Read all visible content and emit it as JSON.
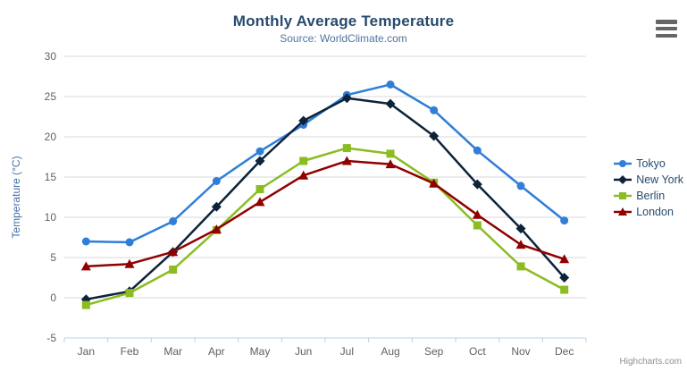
{
  "header": {
    "title": "Monthly Average Temperature",
    "subtitle": "Source: WorldClimate.com"
  },
  "credits": "Highcharts.com",
  "colors": {
    "grid": "#d8d8d8",
    "axis_line": "#c0d0e0",
    "tick_label": "#606060",
    "title": "#274b6d",
    "subtitle": "#4d759e",
    "axis_title": "#4572a7",
    "legend_text": "#274b6d",
    "credits": "#909090",
    "burger_icon": "#666666"
  },
  "icons": {
    "context_menu": "hamburger-icon"
  },
  "chart_data": {
    "type": "line",
    "title": "Monthly Average Temperature",
    "subtitle": "Source: WorldClimate.com",
    "categories": [
      "Jan",
      "Feb",
      "Mar",
      "Apr",
      "May",
      "Jun",
      "Jul",
      "Aug",
      "Sep",
      "Oct",
      "Nov",
      "Dec"
    ],
    "series": [
      {
        "name": "Tokyo",
        "color": "#2f7ed8",
        "marker": "circle",
        "values": [
          7.0,
          6.9,
          9.5,
          14.5,
          18.2,
          21.5,
          25.2,
          26.5,
          23.3,
          18.3,
          13.9,
          9.6
        ]
      },
      {
        "name": "New York",
        "color": "#0d233a",
        "marker": "diamond",
        "values": [
          -0.2,
          0.8,
          5.7,
          11.3,
          17.0,
          22.0,
          24.8,
          24.1,
          20.1,
          14.1,
          8.6,
          2.5
        ]
      },
      {
        "name": "Berlin",
        "color": "#8bbc21",
        "marker": "square",
        "values": [
          -0.9,
          0.6,
          3.5,
          8.4,
          13.5,
          17.0,
          18.6,
          17.9,
          14.3,
          9.0,
          3.9,
          1.0
        ]
      },
      {
        "name": "London",
        "color": "#910000",
        "marker": "triangle",
        "values": [
          3.9,
          4.2,
          5.7,
          8.5,
          11.9,
          15.2,
          17.0,
          16.6,
          14.2,
          10.3,
          6.6,
          4.8
        ]
      }
    ],
    "xlabel": "",
    "ylabel": "Temperature (°C)",
    "ylim": [
      -5,
      30
    ],
    "ytick_step": 5,
    "yticks": [
      "-5",
      "0",
      "5",
      "10",
      "15",
      "20",
      "25",
      "30"
    ],
    "grid": true,
    "legend_position": "right",
    "line_width": 2.5
  }
}
